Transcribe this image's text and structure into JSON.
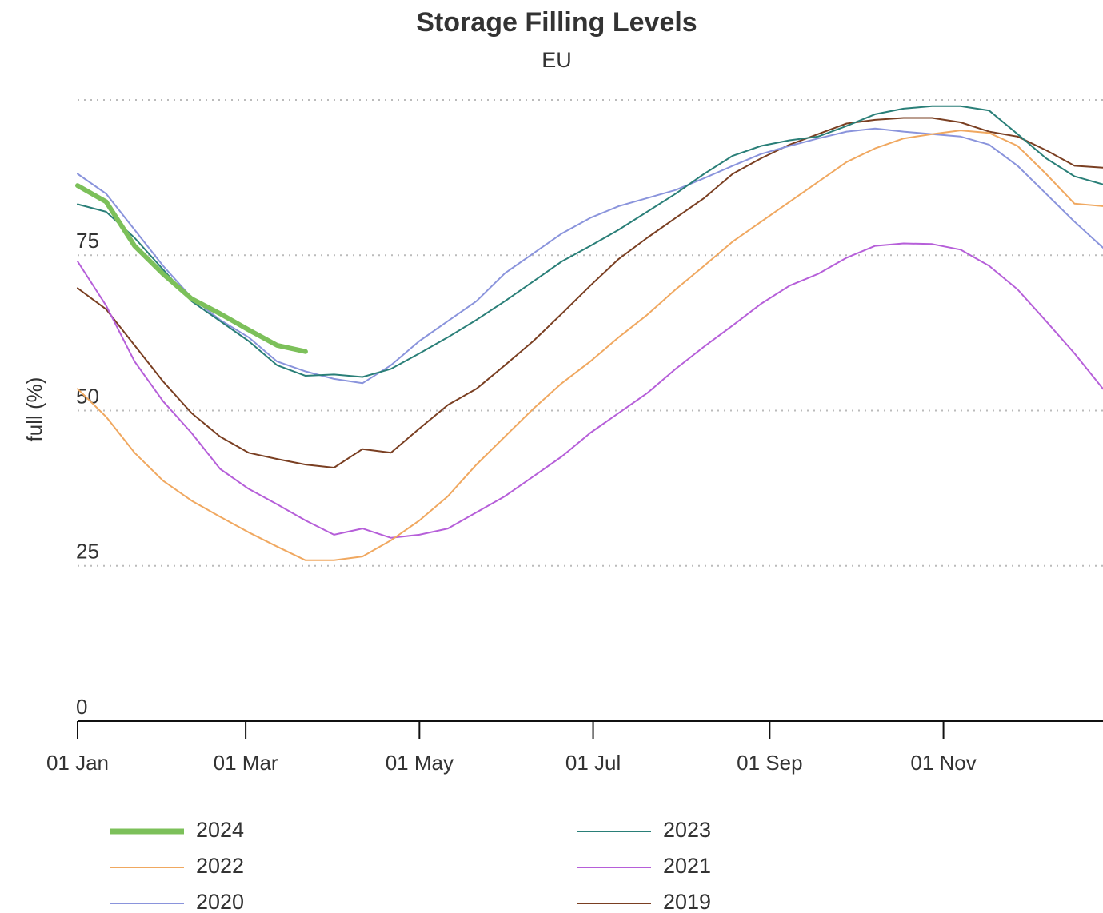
{
  "chart_data": {
    "type": "line",
    "title": "Storage Filling Levels",
    "subtitle": "EU",
    "y_label": "full (%)",
    "x": [
      0,
      10,
      20,
      30,
      40,
      50,
      60,
      70,
      80,
      90,
      100,
      110,
      120,
      130,
      140,
      150,
      160,
      170,
      180,
      190,
      200,
      210,
      220,
      230,
      240,
      250,
      260,
      270,
      280,
      290,
      300,
      310,
      320,
      330,
      340,
      350,
      360
    ],
    "xlim": [
      0,
      360
    ],
    "xticks": [
      {
        "value": 0,
        "label": "01 Jan"
      },
      {
        "value": 59,
        "label": "01 Mar"
      },
      {
        "value": 120,
        "label": "01 May"
      },
      {
        "value": 181,
        "label": "01 Jul"
      },
      {
        "value": 243,
        "label": "01 Sep"
      },
      {
        "value": 304,
        "label": "01 Nov"
      }
    ],
    "ylim": [
      0,
      100
    ],
    "yticks": [
      0,
      25,
      50,
      75
    ],
    "grid": true,
    "legend": "bottom",
    "series": [
      {
        "name": "2024",
        "color": "#7cc05a",
        "values": [
          86.2,
          83.6,
          76.5,
          72,
          68,
          65.6,
          63,
          60.5,
          59.5,
          null,
          null,
          null,
          null,
          null,
          null,
          null,
          null,
          null,
          null,
          null,
          null,
          null,
          null,
          null,
          null,
          null,
          null,
          null,
          null,
          null,
          null,
          null,
          null,
          null,
          null,
          null,
          null
        ]
      },
      {
        "name": "2023",
        "color": "#2a7f78",
        "values": [
          83.2,
          82,
          77.8,
          72.7,
          67.6,
          64.4,
          61.2,
          57.3,
          55.6,
          55.8,
          55.4,
          56.7,
          59.2,
          61.8,
          64.6,
          67.6,
          70.8,
          74,
          76.5,
          79.1,
          82,
          84.9,
          88.1,
          91,
          92.6,
          93.5,
          94.1,
          95.8,
          97.7,
          98.6,
          99,
          99,
          98.3,
          94.5,
          90.6,
          87.7,
          86.4
        ]
      },
      {
        "name": "2022",
        "color": "#f0a860",
        "values": [
          53.5,
          49,
          43.2,
          38.7,
          35.5,
          32.9,
          30.4,
          28.1,
          25.9,
          25.9,
          26.5,
          29.1,
          32.3,
          36.2,
          41.3,
          45.8,
          50.3,
          54.4,
          57.9,
          61.8,
          65.4,
          69.5,
          73.3,
          77.2,
          80.4,
          83.6,
          86.8,
          90,
          92.2,
          93.8,
          94.5,
          95.1,
          94.7,
          92.6,
          88.1,
          83.3,
          82.9
        ]
      },
      {
        "name": "2021",
        "color": "#b65fd9",
        "values": [
          74,
          66.9,
          57.9,
          51.5,
          46.4,
          40.6,
          37.4,
          34.9,
          32.3,
          30,
          31,
          29.5,
          30,
          31,
          33.6,
          36.2,
          39.4,
          42.6,
          46.4,
          49.6,
          52.8,
          56.7,
          60.3,
          63.7,
          67.2,
          70.1,
          72,
          74.6,
          76.5,
          76.9,
          76.8,
          75.9,
          73.3,
          69.5,
          64.4,
          59.2,
          53.5
        ]
      },
      {
        "name": "2020",
        "color": "#8a94dc",
        "values": [
          88.1,
          84.9,
          79.1,
          73.3,
          68.2,
          64.6,
          61.8,
          57.9,
          56.3,
          55.1,
          54.4,
          57.3,
          61.2,
          64.4,
          67.6,
          72.1,
          75.3,
          78.5,
          81,
          82.9,
          84.2,
          85.5,
          87.4,
          89.4,
          91.3,
          92.6,
          93.8,
          94.9,
          95.4,
          94.9,
          94.5,
          94.1,
          92.8,
          89.4,
          84.9,
          80.4,
          76.2
        ]
      },
      {
        "name": "2019",
        "color": "#7a3f22",
        "values": [
          69.7,
          66.3,
          60.5,
          54.7,
          49.6,
          45.8,
          43.2,
          42.2,
          41.3,
          40.8,
          43.8,
          43.2,
          47.1,
          50.9,
          53.5,
          57.3,
          61.2,
          65.6,
          70.1,
          74.4,
          77.8,
          81,
          84.2,
          88.1,
          90.6,
          92.8,
          94.5,
          96.2,
          96.8,
          97.1,
          97.1,
          96.4,
          94.9,
          94.1,
          91.9,
          89.4,
          89.1
        ]
      }
    ]
  }
}
